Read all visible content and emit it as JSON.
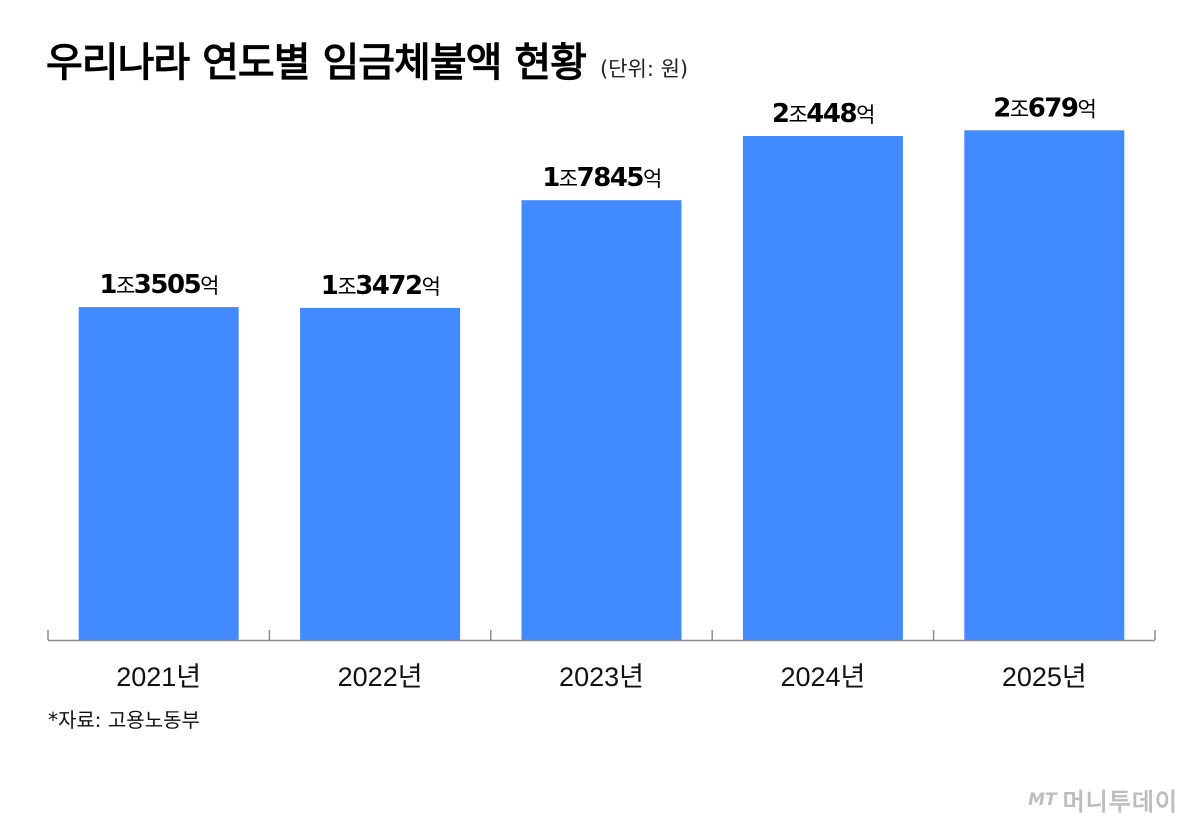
{
  "header": {
    "title": "우리나라 연도별 임금체불액 현황",
    "unit": "(단위: 원)"
  },
  "source": "*자료: 고용노동부",
  "watermark": {
    "logo": "MT",
    "text": "머니투데이"
  },
  "colors": {
    "bar": "#428AFF",
    "axis": "#8c8c8c",
    "text": "#111111"
  },
  "chart_data": {
    "type": "bar",
    "categories": [
      "2021년",
      "2022년",
      "2023년",
      "2024년",
      "2025년"
    ],
    "values": [
      13505,
      13472,
      17845,
      20448,
      20679
    ],
    "value_unit": "억 원",
    "data_labels": [
      {
        "jo": "1",
        "jo_unit": "조",
        "eok": "3505",
        "eok_unit": "억"
      },
      {
        "jo": "1",
        "jo_unit": "조",
        "eok": "3472",
        "eok_unit": "억"
      },
      {
        "jo": "1",
        "jo_unit": "조",
        "eok": "7845",
        "eok_unit": "억"
      },
      {
        "jo": "2",
        "jo_unit": "조",
        "eok": "448",
        "eok_unit": "억"
      },
      {
        "jo": "2",
        "jo_unit": "조",
        "eok": "679",
        "eok_unit": "억"
      }
    ],
    "title": "우리나라 연도별 임금체불액 현황",
    "xlabel": "",
    "ylabel": "",
    "ylim": [
      0,
      21300
    ],
    "grid": false,
    "legend": "none"
  }
}
